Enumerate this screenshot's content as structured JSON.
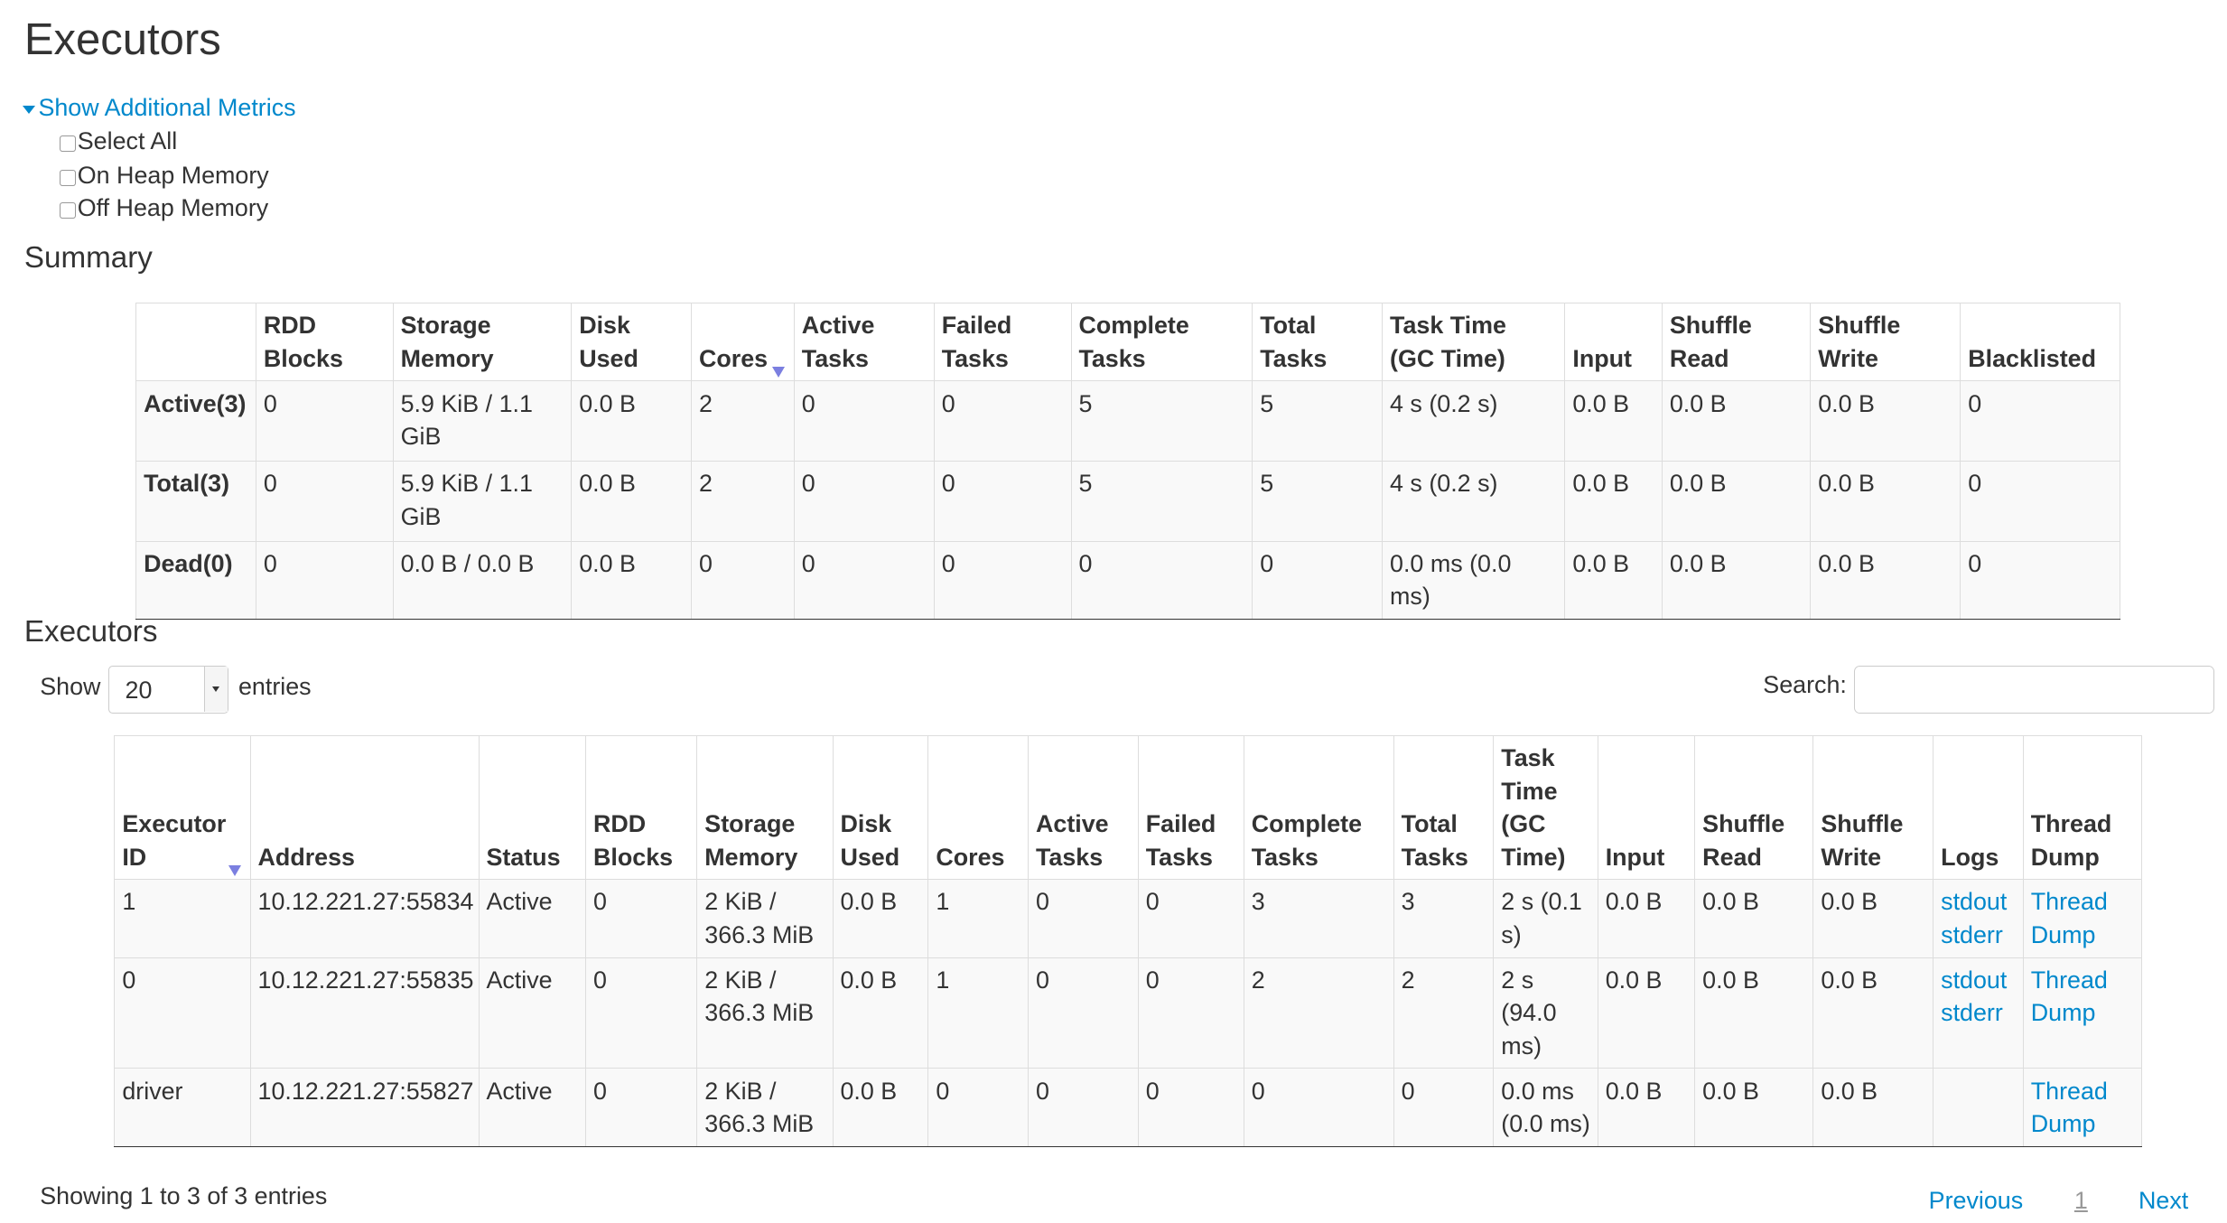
{
  "page_title": "Executors",
  "metrics": {
    "toggle_label": "Show Additional Metrics",
    "options": [
      "Select All",
      "On Heap Memory",
      "Off Heap Memory"
    ]
  },
  "summary": {
    "title": "Summary",
    "headers": [
      "",
      "RDD Blocks",
      "Storage Memory",
      "Disk Used",
      "Cores",
      "Active Tasks",
      "Failed Tasks",
      "Complete Tasks",
      "Total Tasks",
      "Task Time (GC Time)",
      "Input",
      "Shuffle Read",
      "Shuffle Write",
      "Blacklisted"
    ],
    "rows": [
      [
        "Active(3)",
        "0",
        "5.9 KiB / 1.1 GiB",
        "0.0 B",
        "2",
        "0",
        "0",
        "5",
        "5",
        "4 s (0.2 s)",
        "0.0 B",
        "0.0 B",
        "0.0 B",
        "0"
      ],
      [
        "Total(3)",
        "0",
        "5.9 KiB / 1.1 GiB",
        "0.0 B",
        "2",
        "0",
        "0",
        "5",
        "5",
        "4 s (0.2 s)",
        "0.0 B",
        "0.0 B",
        "0.0 B",
        "0"
      ],
      [
        "Dead(0)",
        "0",
        "0.0 B / 0.0 B",
        "0.0 B",
        "0",
        "0",
        "0",
        "0",
        "0",
        "0.0 ms (0.0 ms)",
        "0.0 B",
        "0.0 B",
        "0.0 B",
        "0"
      ]
    ]
  },
  "executors": {
    "title": "Executors",
    "show_label": "Show",
    "page_size": "20",
    "entries_label": "entries",
    "search_label": "Search:",
    "search_value": "",
    "headers": [
      "Executor ID",
      "Address",
      "Status",
      "RDD Blocks",
      "Storage Memory",
      "Disk Used",
      "Cores",
      "Active Tasks",
      "Failed Tasks",
      "Complete Tasks",
      "Total Tasks",
      "Task Time (GC Time)",
      "Input",
      "Shuffle Read",
      "Shuffle Write",
      "Logs",
      "Thread Dump"
    ],
    "rows": [
      {
        "cells": [
          "1",
          "10.12.221.27:55834",
          "Active",
          "0",
          "2 KiB / 366.3 MiB",
          "0.0 B",
          "1",
          "0",
          "0",
          "3",
          "3",
          "2 s (0.1 s)",
          "0.0 B",
          "0.0 B",
          "0.0 B"
        ],
        "logs": [
          "stdout",
          "stderr"
        ],
        "thread_dump": "Thread Dump"
      },
      {
        "cells": [
          "0",
          "10.12.221.27:55835",
          "Active",
          "0",
          "2 KiB / 366.3 MiB",
          "0.0 B",
          "1",
          "0",
          "0",
          "2",
          "2",
          "2 s (94.0 ms)",
          "0.0 B",
          "0.0 B",
          "0.0 B"
        ],
        "logs": [
          "stdout",
          "stderr"
        ],
        "thread_dump": "Thread Dump"
      },
      {
        "cells": [
          "driver",
          "10.12.221.27:55827",
          "Active",
          "0",
          "2 KiB / 366.3 MiB",
          "0.0 B",
          "0",
          "0",
          "0",
          "0",
          "0",
          "0.0 ms (0.0 ms)",
          "0.0 B",
          "0.0 B",
          "0.0 B"
        ],
        "logs": [],
        "thread_dump": "Thread Dump"
      }
    ],
    "info": "Showing 1 to 3 of 3 entries",
    "pagination": {
      "previous": "Previous",
      "current": "1",
      "next": "Next"
    }
  }
}
